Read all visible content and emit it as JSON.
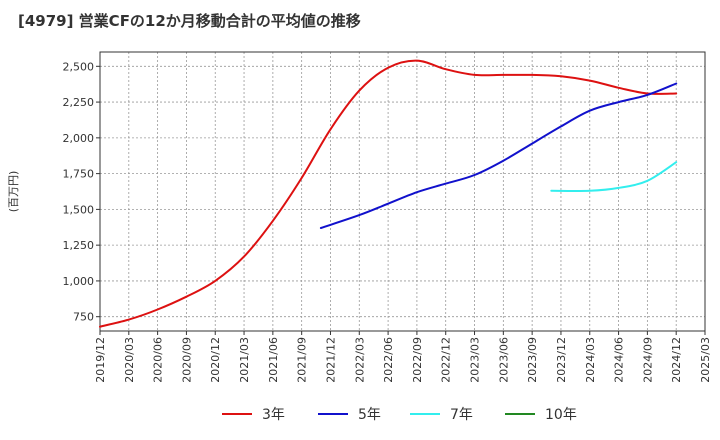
{
  "title": "[4979]  営業CFの12か月移動合計の平均値の推移",
  "chart_data": {
    "type": "line",
    "ylabel": "(百万円)",
    "ylim": [
      650,
      2600
    ],
    "yticks": [
      750,
      1000,
      1250,
      1500,
      1750,
      2000,
      2250,
      2500
    ],
    "ytick_labels": [
      "750",
      "1,000",
      "1,250",
      "1,500",
      "1,750",
      "2,000",
      "2,250",
      "2,500"
    ],
    "xlim": [
      "2019/12",
      "2025/03"
    ],
    "xtick_labels": [
      "2019/12",
      "2020/03",
      "2020/06",
      "2020/09",
      "2020/12",
      "2021/03",
      "2021/06",
      "2021/09",
      "2021/12",
      "2022/03",
      "2022/06",
      "2022/09",
      "2022/12",
      "2023/03",
      "2023/06",
      "2023/09",
      "2023/12",
      "2024/03",
      "2024/06",
      "2024/09",
      "2024/12",
      "2025/03"
    ],
    "grid": true,
    "legend_position": "bottom",
    "series": [
      {
        "name": "3年",
        "color": "#dd1111",
        "points": [
          [
            "2019/12",
            680
          ],
          [
            "2020/03",
            730
          ],
          [
            "2020/06",
            800
          ],
          [
            "2020/09",
            890
          ],
          [
            "2020/12",
            1000
          ],
          [
            "2021/03",
            1170
          ],
          [
            "2021/06",
            1420
          ],
          [
            "2021/09",
            1720
          ],
          [
            "2021/12",
            2060
          ],
          [
            "2022/03",
            2330
          ],
          [
            "2022/06",
            2490
          ],
          [
            "2022/09",
            2540
          ],
          [
            "2022/12",
            2480
          ],
          [
            "2023/03",
            2440
          ],
          [
            "2023/06",
            2440
          ],
          [
            "2023/09",
            2440
          ],
          [
            "2023/12",
            2430
          ],
          [
            "2024/03",
            2400
          ],
          [
            "2024/06",
            2350
          ],
          [
            "2024/09",
            2310
          ],
          [
            "2024/12",
            2310
          ]
        ]
      },
      {
        "name": "5年",
        "color": "#1111cc",
        "points": [
          [
            "2021/11",
            1370
          ],
          [
            "2022/03",
            1460
          ],
          [
            "2022/06",
            1540
          ],
          [
            "2022/09",
            1620
          ],
          [
            "2022/12",
            1680
          ],
          [
            "2023/03",
            1740
          ],
          [
            "2023/06",
            1840
          ],
          [
            "2023/09",
            1960
          ],
          [
            "2023/12",
            2080
          ],
          [
            "2024/03",
            2190
          ],
          [
            "2024/06",
            2250
          ],
          [
            "2024/09",
            2300
          ],
          [
            "2024/12",
            2380
          ]
        ]
      },
      {
        "name": "7年",
        "color": "#33eeee",
        "points": [
          [
            "2023/11",
            1630
          ],
          [
            "2024/03",
            1630
          ],
          [
            "2024/06",
            1650
          ],
          [
            "2024/09",
            1700
          ],
          [
            "2024/12",
            1830
          ]
        ]
      },
      {
        "name": "10年",
        "color": "#228822",
        "points": []
      }
    ]
  }
}
